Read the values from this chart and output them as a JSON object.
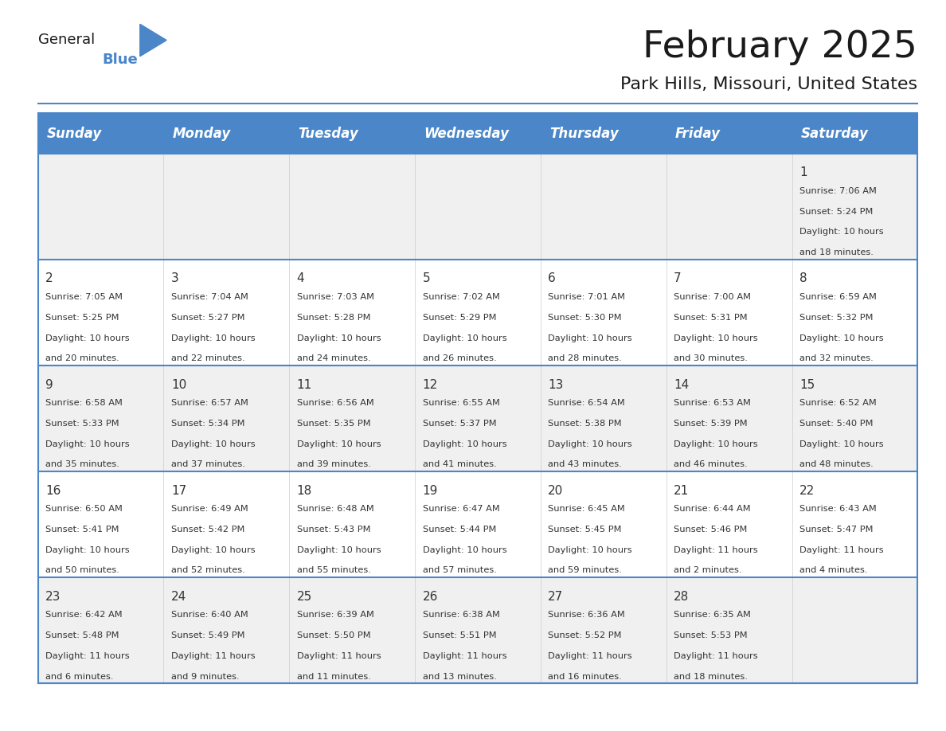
{
  "title": "February 2025",
  "subtitle": "Park Hills, Missouri, United States",
  "header_bg": "#4a86c8",
  "header_text_color": "#ffffff",
  "days_of_week": [
    "Sunday",
    "Monday",
    "Tuesday",
    "Wednesday",
    "Thursday",
    "Friday",
    "Saturday"
  ],
  "row1_bg": "#f0f0f0",
  "row2_bg": "#ffffff",
  "grid_line_color": "#4a86c8",
  "day_number_color": "#333333",
  "info_text_color": "#333333",
  "calendar": [
    [
      {
        "day": "",
        "sunrise": "",
        "sunset": "",
        "daylight": ""
      },
      {
        "day": "",
        "sunrise": "",
        "sunset": "",
        "daylight": ""
      },
      {
        "day": "",
        "sunrise": "",
        "sunset": "",
        "daylight": ""
      },
      {
        "day": "",
        "sunrise": "",
        "sunset": "",
        "daylight": ""
      },
      {
        "day": "",
        "sunrise": "",
        "sunset": "",
        "daylight": ""
      },
      {
        "day": "",
        "sunrise": "",
        "sunset": "",
        "daylight": ""
      },
      {
        "day": "1",
        "sunrise": "7:06 AM",
        "sunset": "5:24 PM",
        "daylight": "10 hours\nand 18 minutes."
      }
    ],
    [
      {
        "day": "2",
        "sunrise": "7:05 AM",
        "sunset": "5:25 PM",
        "daylight": "10 hours\nand 20 minutes."
      },
      {
        "day": "3",
        "sunrise": "7:04 AM",
        "sunset": "5:27 PM",
        "daylight": "10 hours\nand 22 minutes."
      },
      {
        "day": "4",
        "sunrise": "7:03 AM",
        "sunset": "5:28 PM",
        "daylight": "10 hours\nand 24 minutes."
      },
      {
        "day": "5",
        "sunrise": "7:02 AM",
        "sunset": "5:29 PM",
        "daylight": "10 hours\nand 26 minutes."
      },
      {
        "day": "6",
        "sunrise": "7:01 AM",
        "sunset": "5:30 PM",
        "daylight": "10 hours\nand 28 minutes."
      },
      {
        "day": "7",
        "sunrise": "7:00 AM",
        "sunset": "5:31 PM",
        "daylight": "10 hours\nand 30 minutes."
      },
      {
        "day": "8",
        "sunrise": "6:59 AM",
        "sunset": "5:32 PM",
        "daylight": "10 hours\nand 32 minutes."
      }
    ],
    [
      {
        "day": "9",
        "sunrise": "6:58 AM",
        "sunset": "5:33 PM",
        "daylight": "10 hours\nand 35 minutes."
      },
      {
        "day": "10",
        "sunrise": "6:57 AM",
        "sunset": "5:34 PM",
        "daylight": "10 hours\nand 37 minutes."
      },
      {
        "day": "11",
        "sunrise": "6:56 AM",
        "sunset": "5:35 PM",
        "daylight": "10 hours\nand 39 minutes."
      },
      {
        "day": "12",
        "sunrise": "6:55 AM",
        "sunset": "5:37 PM",
        "daylight": "10 hours\nand 41 minutes."
      },
      {
        "day": "13",
        "sunrise": "6:54 AM",
        "sunset": "5:38 PM",
        "daylight": "10 hours\nand 43 minutes."
      },
      {
        "day": "14",
        "sunrise": "6:53 AM",
        "sunset": "5:39 PM",
        "daylight": "10 hours\nand 46 minutes."
      },
      {
        "day": "15",
        "sunrise": "6:52 AM",
        "sunset": "5:40 PM",
        "daylight": "10 hours\nand 48 minutes."
      }
    ],
    [
      {
        "day": "16",
        "sunrise": "6:50 AM",
        "sunset": "5:41 PM",
        "daylight": "10 hours\nand 50 minutes."
      },
      {
        "day": "17",
        "sunrise": "6:49 AM",
        "sunset": "5:42 PM",
        "daylight": "10 hours\nand 52 minutes."
      },
      {
        "day": "18",
        "sunrise": "6:48 AM",
        "sunset": "5:43 PM",
        "daylight": "10 hours\nand 55 minutes."
      },
      {
        "day": "19",
        "sunrise": "6:47 AM",
        "sunset": "5:44 PM",
        "daylight": "10 hours\nand 57 minutes."
      },
      {
        "day": "20",
        "sunrise": "6:45 AM",
        "sunset": "5:45 PM",
        "daylight": "10 hours\nand 59 minutes."
      },
      {
        "day": "21",
        "sunrise": "6:44 AM",
        "sunset": "5:46 PM",
        "daylight": "11 hours\nand 2 minutes."
      },
      {
        "day": "22",
        "sunrise": "6:43 AM",
        "sunset": "5:47 PM",
        "daylight": "11 hours\nand 4 minutes."
      }
    ],
    [
      {
        "day": "23",
        "sunrise": "6:42 AM",
        "sunset": "5:48 PM",
        "daylight": "11 hours\nand 6 minutes."
      },
      {
        "day": "24",
        "sunrise": "6:40 AM",
        "sunset": "5:49 PM",
        "daylight": "11 hours\nand 9 minutes."
      },
      {
        "day": "25",
        "sunrise": "6:39 AM",
        "sunset": "5:50 PM",
        "daylight": "11 hours\nand 11 minutes."
      },
      {
        "day": "26",
        "sunrise": "6:38 AM",
        "sunset": "5:51 PM",
        "daylight": "11 hours\nand 13 minutes."
      },
      {
        "day": "27",
        "sunrise": "6:36 AM",
        "sunset": "5:52 PM",
        "daylight": "11 hours\nand 16 minutes."
      },
      {
        "day": "28",
        "sunrise": "6:35 AM",
        "sunset": "5:53 PM",
        "daylight": "11 hours\nand 18 minutes."
      },
      {
        "day": "",
        "sunrise": "",
        "sunset": "",
        "daylight": ""
      }
    ]
  ],
  "logo_triangle_color": "#4a86c8",
  "logo_text_color_general": "#1a1a1a",
  "logo_text_color_blue": "#4a86c8"
}
